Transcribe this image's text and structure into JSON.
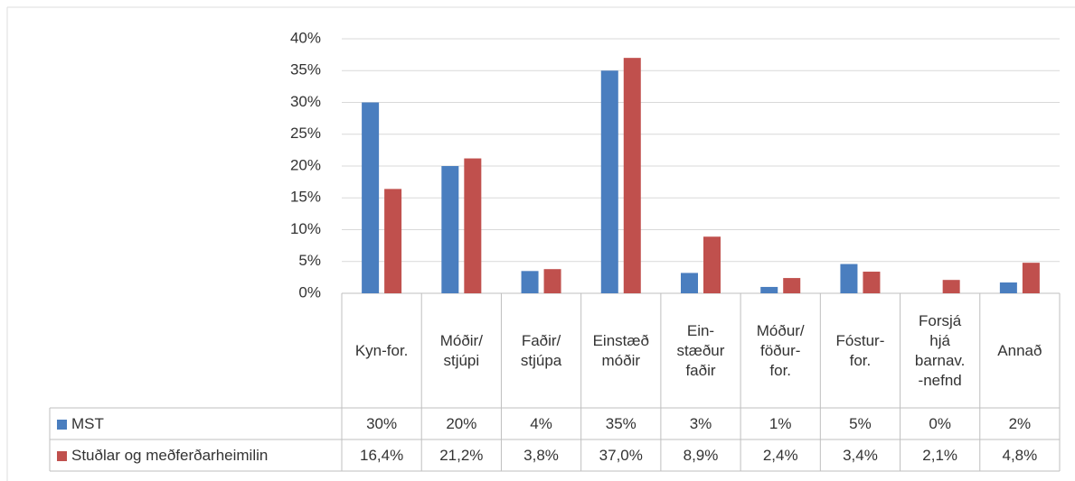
{
  "chart_data": {
    "type": "bar",
    "categories": [
      "Kyn-for.",
      "Móðir/\nstjúpi",
      "Faðir/\nstjúpa",
      "Einstæð\nmóðir",
      "Ein-\nstæður\nfaðir",
      "Móður/\nföður-\nfor.",
      "Fóstur-\nfor.",
      "Forsjá\nhjá\nbarnav.\n-nefnd",
      "Annað"
    ],
    "series": [
      {
        "name": "MST",
        "color": "#4a7ebf",
        "values": [
          30,
          20,
          3.5,
          35,
          3.2,
          1,
          4.6,
          0,
          1.7
        ],
        "value_labels": [
          "30%",
          "20%",
          "4%",
          "35%",
          "3%",
          "1%",
          "5%",
          "0%",
          "2%"
        ]
      },
      {
        "name": "Stuðlar og meðferðarheimilin",
        "color": "#c0504d",
        "values": [
          16.4,
          21.2,
          3.8,
          37.0,
          8.9,
          2.4,
          3.4,
          2.1,
          4.8
        ],
        "value_labels": [
          "16,4%",
          "21,2%",
          "3,8%",
          "37,0%",
          "8,9%",
          "2,4%",
          "3,4%",
          "2,1%",
          "4,8%"
        ]
      }
    ],
    "ylim": [
      0,
      40
    ],
    "yticks": [
      {
        "value": 0,
        "label": "0%"
      },
      {
        "value": 5,
        "label": "5%"
      },
      {
        "value": 10,
        "label": "10%"
      },
      {
        "value": 15,
        "label": "15%"
      },
      {
        "value": 20,
        "label": "20%"
      },
      {
        "value": 25,
        "label": "25%"
      },
      {
        "value": 30,
        "label": "30%"
      },
      {
        "value": 35,
        "label": "35%"
      },
      {
        "value": 40,
        "label": "40%"
      }
    ],
    "grid": true
  }
}
